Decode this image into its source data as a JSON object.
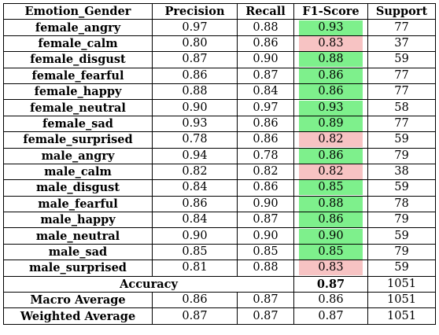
{
  "headers": [
    "Emotion_Gender",
    "Precision",
    "Recall",
    "F1-Score",
    "Support"
  ],
  "rows": [
    {
      "label": "female_angry",
      "precision": "0.97",
      "recall": "0.88",
      "f1": "0.93",
      "support": "77",
      "highlight": "green"
    },
    {
      "label": "female_calm",
      "precision": "0.80",
      "recall": "0.86",
      "f1": "0.83",
      "support": "37",
      "highlight": "red"
    },
    {
      "label": "female_disgust",
      "precision": "0.87",
      "recall": "0.90",
      "f1": "0.88",
      "support": "59",
      "highlight": "green"
    },
    {
      "label": "female_fearful",
      "precision": "0.86",
      "recall": "0.87",
      "f1": "0.86",
      "support": "77",
      "highlight": "green"
    },
    {
      "label": "female_happy",
      "precision": "0.88",
      "recall": "0.84",
      "f1": "0.86",
      "support": "77",
      "highlight": "green"
    },
    {
      "label": "female_neutral",
      "precision": "0.90",
      "recall": "0.97",
      "f1": "0.93",
      "support": "58",
      "highlight": "green"
    },
    {
      "label": "female_sad",
      "precision": "0.93",
      "recall": "0.86",
      "f1": "0.89",
      "support": "77",
      "highlight": "green"
    },
    {
      "label": "female_surprised",
      "precision": "0.78",
      "recall": "0.86",
      "f1": "0.82",
      "support": "59",
      "highlight": "red"
    },
    {
      "label": "male_angry",
      "precision": "0.94",
      "recall": "0.78",
      "f1": "0.86",
      "support": "79",
      "highlight": "green"
    },
    {
      "label": "male_calm",
      "precision": "0.82",
      "recall": "0.82",
      "f1": "0.82",
      "support": "38",
      "highlight": "red"
    },
    {
      "label": "male_disgust",
      "precision": "0.84",
      "recall": "0.86",
      "f1": "0.85",
      "support": "59",
      "highlight": "green"
    },
    {
      "label": "male_fearful",
      "precision": "0.86",
      "recall": "0.90",
      "f1": "0.88",
      "support": "78",
      "highlight": "green"
    },
    {
      "label": "male_happy",
      "precision": "0.84",
      "recall": "0.87",
      "f1": "0.86",
      "support": "79",
      "highlight": "green"
    },
    {
      "label": "male_neutral",
      "precision": "0.90",
      "recall": "0.90",
      "f1": "0.90",
      "support": "59",
      "highlight": "green"
    },
    {
      "label": "male_sad",
      "precision": "0.85",
      "recall": "0.85",
      "f1": "0.85",
      "support": "79",
      "highlight": "green"
    },
    {
      "label": "male_surprised",
      "precision": "0.81",
      "recall": "0.88",
      "f1": "0.83",
      "support": "59",
      "highlight": "red"
    }
  ],
  "accuracy": {
    "label": "Accuracy",
    "f1": "0.87",
    "support": "1051"
  },
  "summary": [
    {
      "label": "Macro Average",
      "precision": "0.86",
      "recall": "0.87",
      "f1": "0.86",
      "support": "1051"
    },
    {
      "label": "Weighted Average",
      "precision": "0.87",
      "recall": "0.87",
      "f1": "0.87",
      "support": "1051"
    }
  ],
  "colors": {
    "good": "#7ef08c",
    "bad": "#f7c3c3"
  }
}
